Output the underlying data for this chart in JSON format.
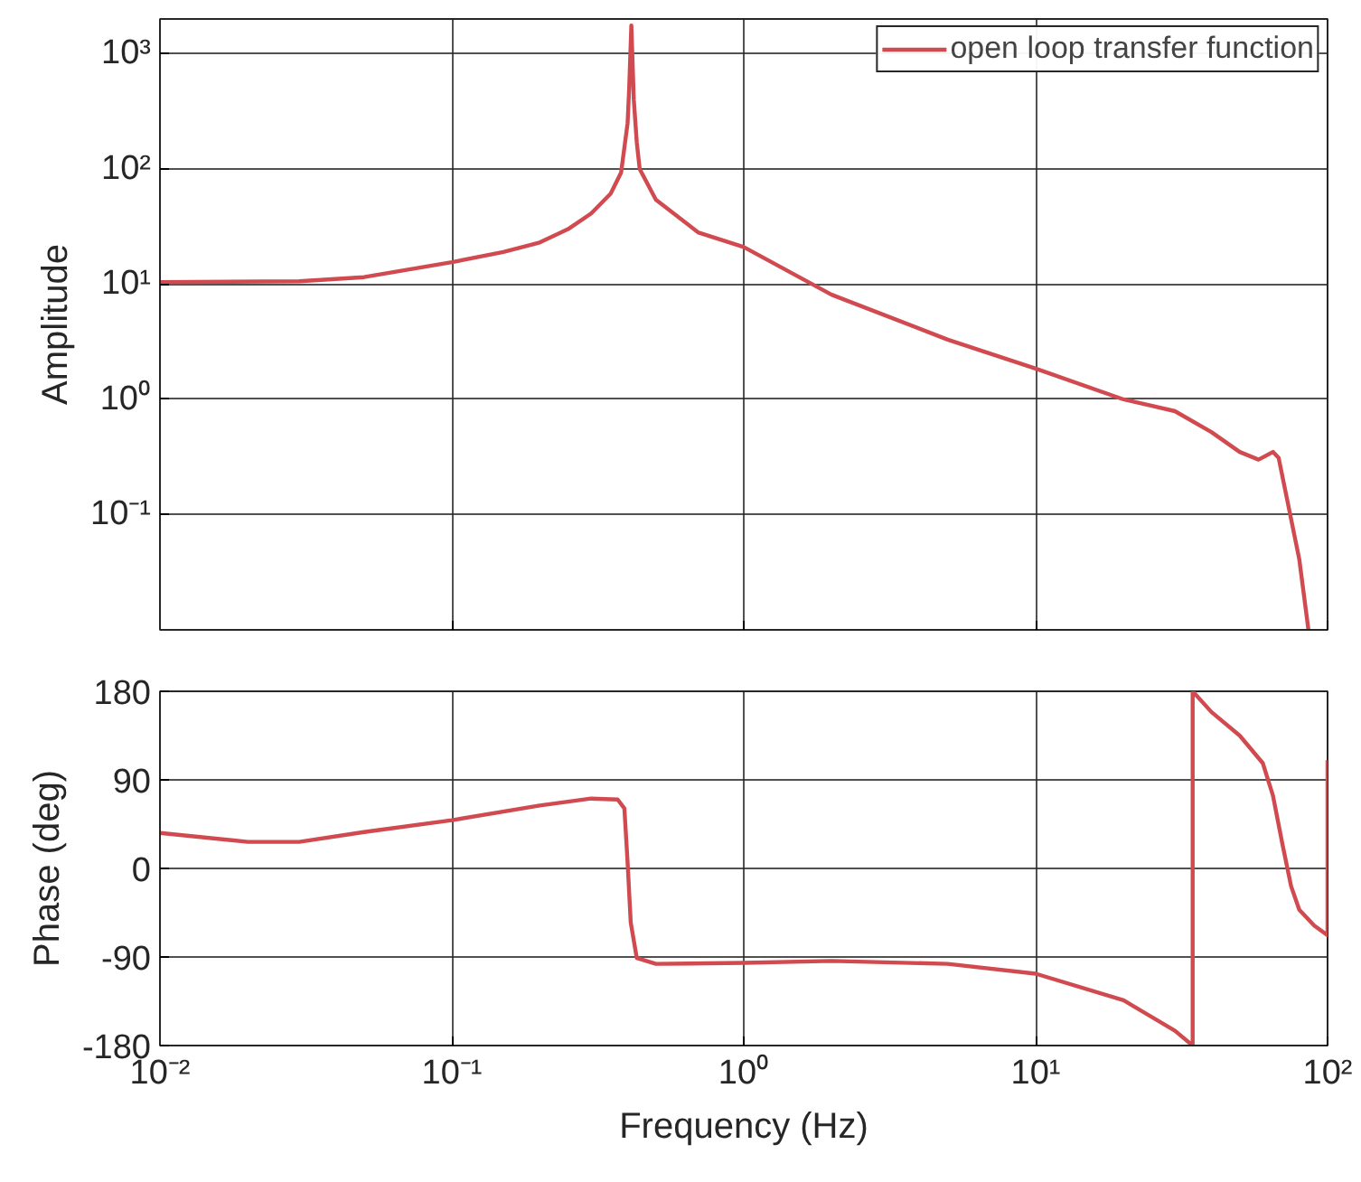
{
  "chart_data": [
    {
      "type": "line",
      "ylabel": "Amplitude",
      "log": "xy",
      "grid": true,
      "legend": "top right",
      "tick_labels": "y",
      "line_style": "solid",
      "marker": "none",
      "xlim": [
        0.01,
        100
      ],
      "xticks": [
        {
          "value": 0.01,
          "label": null
        },
        {
          "value": 0.1,
          "label": null
        },
        {
          "value": 1,
          "label": null
        },
        {
          "value": 10,
          "label": null
        },
        {
          "value": 100,
          "label": null
        }
      ],
      "ylim": [
        0.01,
        2000
      ],
      "yticks": [
        {
          "value": 0.1,
          "label": "10⁻¹"
        },
        {
          "value": 1,
          "label": "10⁰"
        },
        {
          "value": 10,
          "label": "10¹"
        },
        {
          "value": 100,
          "label": "10²"
        },
        {
          "value": 1000,
          "label": "10³"
        }
      ],
      "series": [
        {
          "name": "open loop transfer function",
          "color": "#d04a4f",
          "x": [
            0.01,
            0.03,
            0.05,
            0.1,
            0.15,
            0.2,
            0.25,
            0.3,
            0.35,
            0.38,
            0.4,
            0.405,
            0.412,
            0.42,
            0.43,
            0.44,
            0.5,
            0.7,
            1,
            2,
            5,
            10,
            20,
            30,
            40,
            50,
            58,
            65,
            68,
            80,
            86
          ],
          "values": [
            10.4,
            10.6,
            11.5,
            15.5,
            19,
            23,
            30,
            41,
            61,
            93,
            250,
            500,
            1760,
            400,
            170,
            100,
            54,
            28,
            21,
            8.1,
            3.3,
            1.85,
            1.0,
            0.79,
            0.52,
            0.35,
            0.3,
            0.35,
            0.31,
            0.041,
            0.01
          ]
        }
      ]
    },
    {
      "type": "line",
      "xlabel": "Frequency (Hz)",
      "ylabel": "Phase (deg)",
      "log": "x",
      "grid": true,
      "line_style": "solid",
      "marker": "none",
      "xlim": [
        0.01,
        100
      ],
      "xticks": [
        {
          "value": 0.01,
          "label": "10⁻²"
        },
        {
          "value": 0.1,
          "label": "10⁻¹"
        },
        {
          "value": 1,
          "label": "10⁰"
        },
        {
          "value": 10,
          "label": "10¹"
        },
        {
          "value": 100,
          "label": "10²"
        }
      ],
      "ylim": [
        -180,
        180
      ],
      "yticks": [
        -180,
        -90,
        0,
        90,
        180
      ],
      "series": [
        {
          "color": "#d04a4f",
          "x": [
            0.01,
            0.02,
            0.03,
            0.05,
            0.1,
            0.2,
            0.3,
            0.37,
            0.39,
            0.4,
            0.41,
            0.43,
            0.5,
            1,
            2,
            5,
            10,
            20,
            30,
            34.5,
            34.5,
            40,
            50,
            60,
            65,
            70,
            75,
            80,
            90,
            100,
            100
          ],
          "values": [
            36,
            27,
            27,
            37,
            49,
            64,
            71,
            70,
            61,
            6,
            -55,
            -91,
            -97,
            -96,
            -94,
            -97,
            -107,
            -134,
            -165,
            -180,
            180,
            159,
            135,
            107,
            74,
            25,
            -18,
            -42,
            -58,
            -68,
            110
          ]
        }
      ]
    }
  ]
}
